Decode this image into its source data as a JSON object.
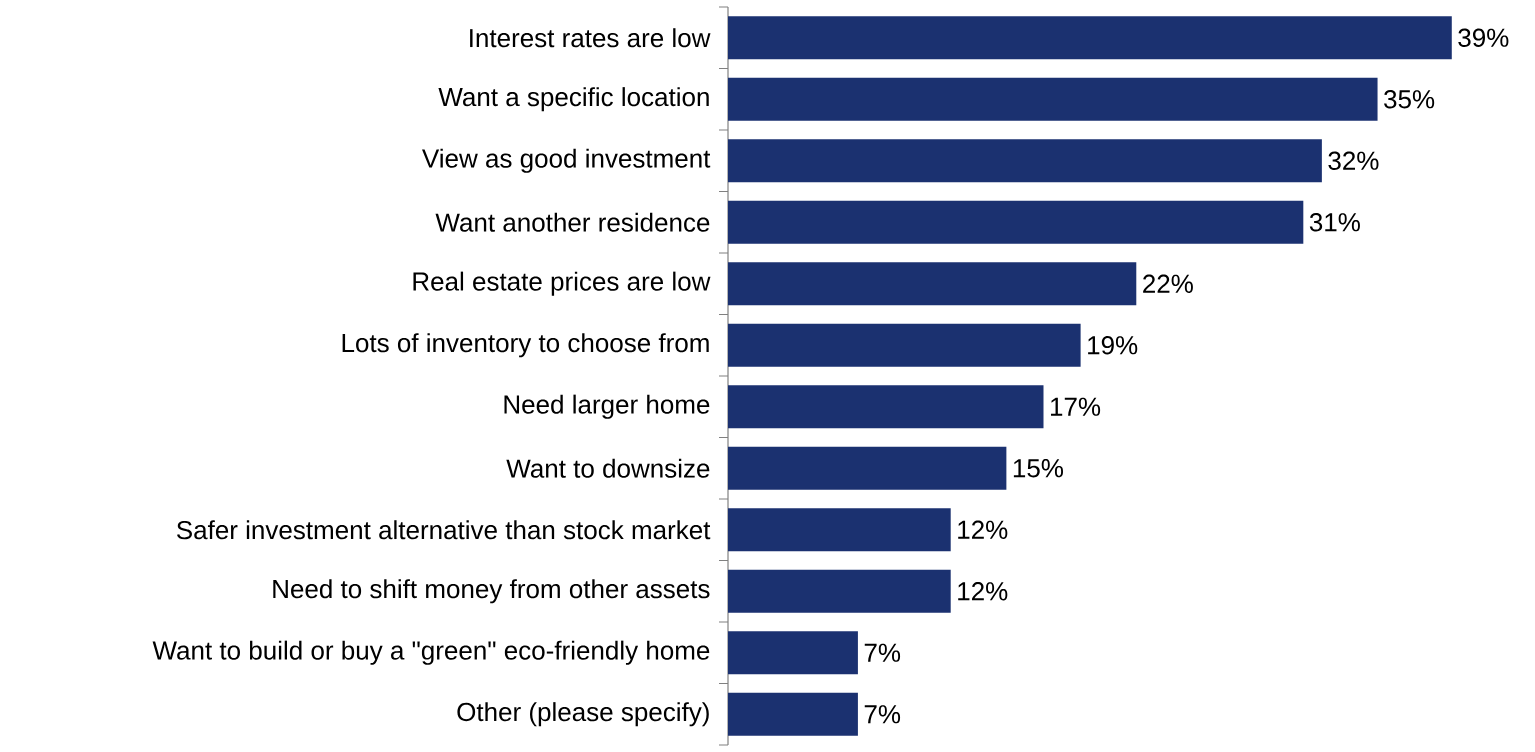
{
  "chart_data": {
    "type": "bar",
    "orientation": "horizontal",
    "categories": [
      "Interest rates are low",
      "Want a specific location",
      "View as good investment",
      "Want another residence",
      "Real estate prices are low",
      "Lots of inventory to choose from",
      "Need larger home",
      "Want to downsize",
      "Safer investment alternative than stock market",
      "Need to shift money from other assets",
      "Want to build or buy a \"green\" eco-friendly home",
      "Other (please specify)"
    ],
    "values": [
      39,
      35,
      32,
      31,
      22,
      19,
      17,
      15,
      12,
      12,
      7,
      7
    ],
    "value_labels": [
      "39%",
      "35%",
      "32%",
      "31%",
      "22%",
      "19%",
      "17%",
      "15%",
      "12%",
      "12%",
      "7%",
      "7%"
    ],
    "color": "#1b3170"
  }
}
